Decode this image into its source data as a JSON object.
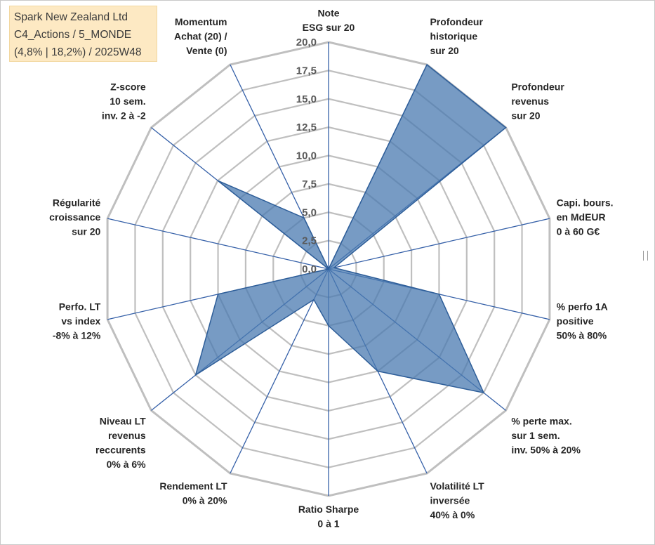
{
  "header": {
    "line1": "Spark New Zealand Ltd",
    "line2": "C4_Actions / 5_MONDE",
    "line3": "(4,8% | 18,2%) / 2025W48"
  },
  "colors": {
    "fill": "#4a7ab0",
    "stroke": "#2e5e99",
    "grid": "#bfbfbf",
    "spoke": "#3560a8",
    "legend_bg": "#fde9c3"
  },
  "chart_data": {
    "type": "radar",
    "title": "Spark New Zealand Ltd",
    "rlim": [
      0,
      20
    ],
    "ticks": [
      "0,0",
      "2,5",
      "5,0",
      "7,5",
      "10,0",
      "12,5",
      "15,0",
      "17,5",
      "20,0"
    ],
    "axes": [
      {
        "lines": [
          "Note",
          "ESG sur 20"
        ],
        "value": 0
      },
      {
        "lines": [
          "Profondeur",
          "historique",
          "sur 20"
        ],
        "value": 20
      },
      {
        "lines": [
          "Profondeur",
          "revenus",
          "sur 20"
        ],
        "value": 20
      },
      {
        "lines": [
          "Capi. bours.",
          "en MdEUR",
          "0 à 60 G€"
        ],
        "value": 0.5
      },
      {
        "lines": [
          "% perfo 1A",
          "positive",
          "50% à 80%"
        ],
        "value": 10
      },
      {
        "lines": [
          "% perte max.",
          "sur 1 sem.",
          "inv. 50% à 20%"
        ],
        "value": 17.5
      },
      {
        "lines": [
          "Volatilité LT",
          "inversée",
          "40% à 0%"
        ],
        "value": 10
      },
      {
        "lines": [
          "Ratio Sharpe",
          "0 à 1"
        ],
        "value": 5
      },
      {
        "lines": [
          "Rendement LT",
          "0% à 20%"
        ],
        "value": 3
      },
      {
        "lines": [
          "Niveau LT",
          "revenus",
          "reccurents",
          "0% à 6%"
        ],
        "value": 15
      },
      {
        "lines": [
          "Perfo. LT",
          "vs index",
          "-8% à 12%"
        ],
        "value": 10
      },
      {
        "lines": [
          "Régularité",
          "croissance",
          "sur 20"
        ],
        "value": 0
      },
      {
        "lines": [
          "Z-score",
          "10 sem.",
          "inv. 2 à -2"
        ],
        "value": 12.5
      },
      {
        "lines": [
          "Momentum",
          "Achat (20) /",
          "Vente (0)"
        ],
        "value": 5
      }
    ]
  }
}
